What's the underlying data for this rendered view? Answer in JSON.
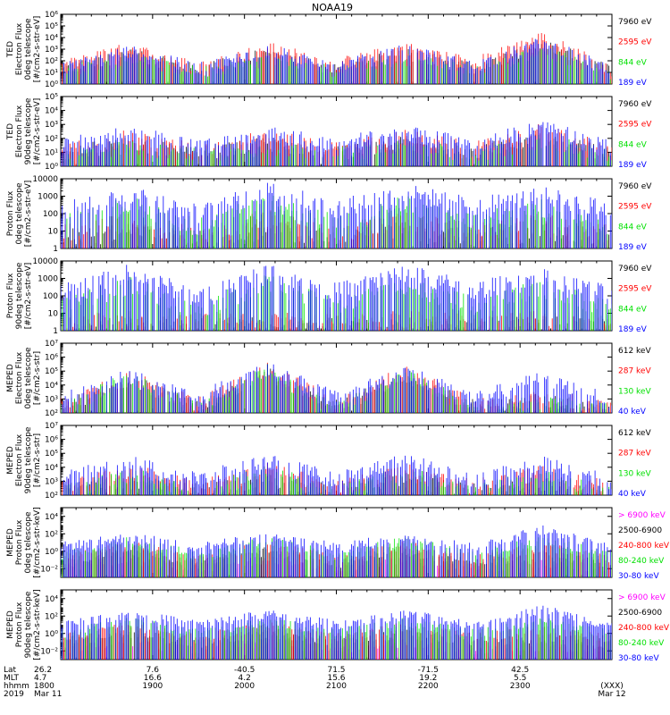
{
  "figure": {
    "title": "NOAA19",
    "xaxis": {
      "row_labels": [
        "Lat",
        "MLT",
        "hhmm",
        "2019"
      ],
      "ticks": [
        {
          "lat": "26.2",
          "mlt": "4.7",
          "hhmm": "1800",
          "date": "Mar 11"
        },
        {
          "lat": "7.6",
          "mlt": "16.6",
          "hhmm": "1900",
          "date": ""
        },
        {
          "lat": "-40.5",
          "mlt": "4.2",
          "hhmm": "2000",
          "date": ""
        },
        {
          "lat": "71.5",
          "mlt": "15.6",
          "hhmm": "2100",
          "date": ""
        },
        {
          "lat": "-71.5",
          "mlt": "19.2",
          "hhmm": "2200",
          "date": ""
        },
        {
          "lat": "42.5",
          "mlt": "5.5",
          "hhmm": "2300",
          "date": ""
        },
        {
          "lat": "",
          "mlt": "",
          "hhmm": "(XXX)",
          "date": "Mar 12"
        }
      ]
    }
  },
  "colors": {
    "blue": "#0000ff",
    "red": "#ff0000",
    "green": "#00e000",
    "black": "#000000",
    "magenta": "#ff00ff"
  },
  "chart_data": [
    {
      "type": "scatter",
      "ylabel": [
        "TED",
        "Electron Flux",
        "0deg telescope",
        "[#/cm2-s-str-eV]"
      ],
      "scale": "log",
      "ylim_exp": [
        0,
        6
      ],
      "ytick_exps": [
        0,
        1,
        2,
        3,
        4,
        5,
        6
      ],
      "ytick_labels": [
        "10⁰",
        "10¹",
        "10²",
        "10³",
        "10⁴",
        "10⁵",
        "10⁶"
      ],
      "series": [
        {
          "name": "7960 eV",
          "color": "#000000",
          "mean_exp": [
            1.2,
            2.5,
            1.2,
            2.6,
            1.2,
            2.6,
            1.3,
            3.5,
            1.0
          ]
        },
        {
          "name": "2595 eV",
          "color": "#ff0000",
          "mean_exp": [
            1.5,
            3.1,
            1.4,
            3.1,
            1.7,
            3.1,
            1.8,
            4.0,
            1.2
          ]
        },
        {
          "name": "844 eV",
          "color": "#00e000",
          "mean_exp": [
            1.1,
            2.0,
            1.0,
            2.0,
            1.1,
            2.1,
            1.1,
            2.8,
            0.9
          ]
        },
        {
          "name": "189 eV",
          "color": "#0000ff",
          "mean_exp": [
            1.3,
            2.8,
            1.3,
            2.9,
            1.5,
            2.9,
            1.5,
            3.6,
            1.1
          ]
        }
      ]
    },
    {
      "type": "scatter",
      "ylabel": [
        "TED",
        "Electron Flux",
        "90deg telescope",
        "[#/cm2-s-str-eV]"
      ],
      "scale": "log",
      "ylim_exp": [
        0,
        5
      ],
      "ytick_exps": [
        0,
        1,
        2,
        3,
        4,
        5
      ],
      "ytick_labels": [
        "10⁰",
        "10¹",
        "10²",
        "10³",
        "10⁴",
        "10⁵"
      ],
      "series": [
        {
          "name": "7960 eV",
          "color": "#000000",
          "mean_exp": [
            0.9,
            1.6,
            0.9,
            1.6,
            0.9,
            1.6,
            1.0,
            2.0,
            0.8
          ]
        },
        {
          "name": "2595 eV",
          "color": "#ff0000",
          "mean_exp": [
            1.1,
            2.1,
            1.1,
            2.1,
            1.2,
            2.1,
            1.2,
            2.6,
            1.0
          ]
        },
        {
          "name": "844 eV",
          "color": "#00e000",
          "mean_exp": [
            0.8,
            1.3,
            0.8,
            1.3,
            0.8,
            1.4,
            0.8,
            1.8,
            0.7
          ]
        },
        {
          "name": "189 eV",
          "color": "#0000ff",
          "mean_exp": [
            1.5,
            2.4,
            1.5,
            2.4,
            1.6,
            2.4,
            1.6,
            2.8,
            1.3
          ]
        }
      ]
    },
    {
      "type": "scatter",
      "ylabel": [
        "Proton Flux",
        "0deg telescope",
        "[#/cm2-s-str-eV]"
      ],
      "scale": "log",
      "ylim_exp": [
        0,
        4
      ],
      "ytick_exps": [
        0,
        1,
        2,
        3,
        4
      ],
      "ytick_labels": [
        "1",
        "10",
        "100",
        "1000",
        "10000"
      ],
      "series": [
        {
          "name": "7960 eV",
          "color": "#000000",
          "mean_exp": [
            0.6,
            0.9,
            0.5,
            1.0,
            0.6,
            1.0,
            0.7,
            0.9,
            0.6
          ]
        },
        {
          "name": "2595 eV",
          "color": "#ff0000",
          "mean_exp": [
            0.8,
            1.5,
            0.7,
            1.7,
            0.8,
            1.6,
            0.9,
            1.5,
            0.8
          ]
        },
        {
          "name": "844 eV",
          "color": "#00e000",
          "mean_exp": [
            1.4,
            2.5,
            1.2,
            2.6,
            1.4,
            2.5,
            1.5,
            2.3,
            1.3
          ]
        },
        {
          "name": "189 eV",
          "color": "#0000ff",
          "mean_exp": [
            2.2,
            3.1,
            2.0,
            3.3,
            2.3,
            3.2,
            2.4,
            3.0,
            2.2
          ]
        }
      ]
    },
    {
      "type": "scatter",
      "ylabel": [
        "Proton Flux",
        "90deg telescope",
        "[#/cm2-s-str-eV]"
      ],
      "scale": "log",
      "ylim_exp": [
        0,
        4
      ],
      "ytick_exps": [
        0,
        1,
        2,
        3,
        4
      ],
      "ytick_labels": [
        "1",
        "10",
        "100",
        "1000",
        "10000"
      ],
      "series": [
        {
          "name": "7960 eV",
          "color": "#000000",
          "mean_exp": [
            0.2,
            0.3,
            0.2,
            0.3,
            0.2,
            0.3,
            0.2,
            0.3,
            0.2
          ]
        },
        {
          "name": "2595 eV",
          "color": "#ff0000",
          "mean_exp": [
            0.4,
            0.6,
            0.4,
            0.6,
            0.4,
            0.6,
            0.4,
            0.6,
            0.4
          ]
        },
        {
          "name": "844 eV",
          "color": "#00e000",
          "mean_exp": [
            1.3,
            2.6,
            1.2,
            2.7,
            1.3,
            2.6,
            1.4,
            2.4,
            1.2
          ]
        },
        {
          "name": "189 eV",
          "color": "#0000ff",
          "mean_exp": [
            2.1,
            3.3,
            1.9,
            3.4,
            2.2,
            3.3,
            2.3,
            3.1,
            2.0
          ]
        }
      ]
    },
    {
      "type": "scatter",
      "ylabel": [
        "MEPED",
        "Electron Flux",
        "0deg telescope",
        "[#/cm2-s-str]"
      ],
      "scale": "log",
      "ylim_exp": [
        2,
        7
      ],
      "ytick_exps": [
        2,
        3,
        4,
        5,
        6,
        7
      ],
      "ytick_labels": [
        "10²",
        "10³",
        "10⁴",
        "10⁵",
        "10⁶",
        "10⁷"
      ],
      "series": [
        {
          "name": "612 keV",
          "color": "#000000",
          "mean_exp": [
            2.4,
            4.4,
            2.4,
            4.8,
            2.4,
            4.6,
            2.4,
            3.0,
            2.3
          ]
        },
        {
          "name": "287 keV",
          "color": "#ff0000",
          "mean_exp": [
            2.6,
            4.6,
            2.6,
            5.1,
            2.6,
            4.9,
            2.6,
            3.2,
            2.4
          ]
        },
        {
          "name": "130 keV",
          "color": "#00e000",
          "mean_exp": [
            2.2,
            4.5,
            2.2,
            5.0,
            2.2,
            4.8,
            2.2,
            2.8,
            2.2
          ]
        },
        {
          "name": "40 keV",
          "color": "#0000ff",
          "mean_exp": [
            3.0,
            4.7,
            3.0,
            5.3,
            3.0,
            5.0,
            3.0,
            4.5,
            2.8
          ]
        }
      ]
    },
    {
      "type": "scatter",
      "ylabel": [
        "MEPED",
        "Electron Flux",
        "90deg telescope",
        "[#/cm2-s-str]"
      ],
      "scale": "log",
      "ylim_exp": [
        2,
        7
      ],
      "ytick_exps": [
        2,
        3,
        4,
        5,
        6,
        7
      ],
      "ytick_labels": [
        "10²",
        "10³",
        "10⁴",
        "10⁵",
        "10⁶",
        "10⁷"
      ],
      "series": [
        {
          "name": "612 keV",
          "color": "#000000",
          "mean_exp": [
            2.3,
            2.9,
            2.3,
            3.0,
            2.3,
            3.0,
            2.3,
            2.8,
            2.2
          ]
        },
        {
          "name": "287 keV",
          "color": "#ff0000",
          "mean_exp": [
            2.6,
            3.7,
            2.6,
            3.8,
            2.6,
            3.8,
            2.6,
            3.6,
            2.4
          ]
        },
        {
          "name": "130 keV",
          "color": "#00e000",
          "mean_exp": [
            2.2,
            3.5,
            2.2,
            3.6,
            2.2,
            3.6,
            2.2,
            3.4,
            2.1
          ]
        },
        {
          "name": "40 keV",
          "color": "#0000ff",
          "mean_exp": [
            3.1,
            4.4,
            3.1,
            4.5,
            3.1,
            4.5,
            3.1,
            4.3,
            2.9
          ]
        }
      ]
    },
    {
      "type": "scatter",
      "ylabel": [
        "MEPED",
        "Proton Flux",
        "0deg telescope",
        "[#/cm2-s-str-keV]"
      ],
      "scale": "log",
      "ylim_exp": [
        -3,
        5
      ],
      "ytick_exps": [
        -2,
        0,
        2,
        4
      ],
      "ytick_labels": [
        "10⁻²",
        "10⁰",
        "10²",
        "10⁴"
      ],
      "series": [
        {
          "name": "> 6900 keV",
          "color": "#ff00ff",
          "mean_exp": [
            -2.0,
            -1.0,
            -2.0,
            -1.0,
            -2.0,
            -1.0,
            -2.0,
            -1.5,
            -2.0
          ]
        },
        {
          "name": "2500-6900",
          "color": "#000000",
          "mean_exp": [
            -1.5,
            0.0,
            -1.5,
            0.0,
            -1.5,
            0.0,
            -1.5,
            -0.5,
            -1.5
          ]
        },
        {
          "name": "240-800 keV",
          "color": "#ff0000",
          "mean_exp": [
            -1.0,
            0.7,
            -1.0,
            0.7,
            -1.0,
            0.7,
            -1.0,
            0.5,
            -1.0
          ]
        },
        {
          "name": "80-240 keV",
          "color": "#00e000",
          "mean_exp": [
            -0.5,
            1.2,
            -0.5,
            1.2,
            -0.5,
            1.2,
            -0.5,
            1.3,
            -0.5
          ]
        },
        {
          "name": "30-80 keV",
          "color": "#0000ff",
          "mean_exp": [
            0.5,
            1.6,
            0.5,
            1.6,
            0.5,
            1.6,
            0.5,
            2.5,
            0.3
          ]
        }
      ]
    },
    {
      "type": "scatter",
      "ylabel": [
        "MEPED",
        "Proton Flux",
        "90deg telescope",
        "[#/cm2-s-str-keV]"
      ],
      "scale": "log",
      "ylim_exp": [
        -3,
        5
      ],
      "ytick_exps": [
        -2,
        0,
        2,
        4
      ],
      "ytick_labels": [
        "10⁻²",
        "10⁰",
        "10²",
        "10⁴"
      ],
      "series": [
        {
          "name": "> 6900 keV",
          "color": "#ff00ff",
          "mean_exp": [
            -2.0,
            -1.0,
            -2.0,
            -1.0,
            -2.0,
            -1.0,
            -2.0,
            -1.5,
            -2.0
          ]
        },
        {
          "name": "2500-6900",
          "color": "#000000",
          "mean_exp": [
            -1.2,
            0.0,
            -1.2,
            0.0,
            -1.2,
            0.0,
            -1.2,
            -0.5,
            -1.2
          ]
        },
        {
          "name": "240-800 keV",
          "color": "#ff0000",
          "mean_exp": [
            -0.5,
            0.8,
            -0.5,
            0.8,
            -0.5,
            0.8,
            -0.5,
            0.5,
            -0.5
          ]
        },
        {
          "name": "80-240 keV",
          "color": "#00e000",
          "mean_exp": [
            0.0,
            1.3,
            0.0,
            1.3,
            0.0,
            1.3,
            0.0,
            1.3,
            0.0
          ]
        },
        {
          "name": "30-80 keV",
          "color": "#0000ff",
          "mean_exp": [
            1.0,
            2.2,
            1.0,
            2.2,
            1.0,
            2.2,
            1.0,
            2.8,
            0.8
          ]
        }
      ]
    }
  ]
}
